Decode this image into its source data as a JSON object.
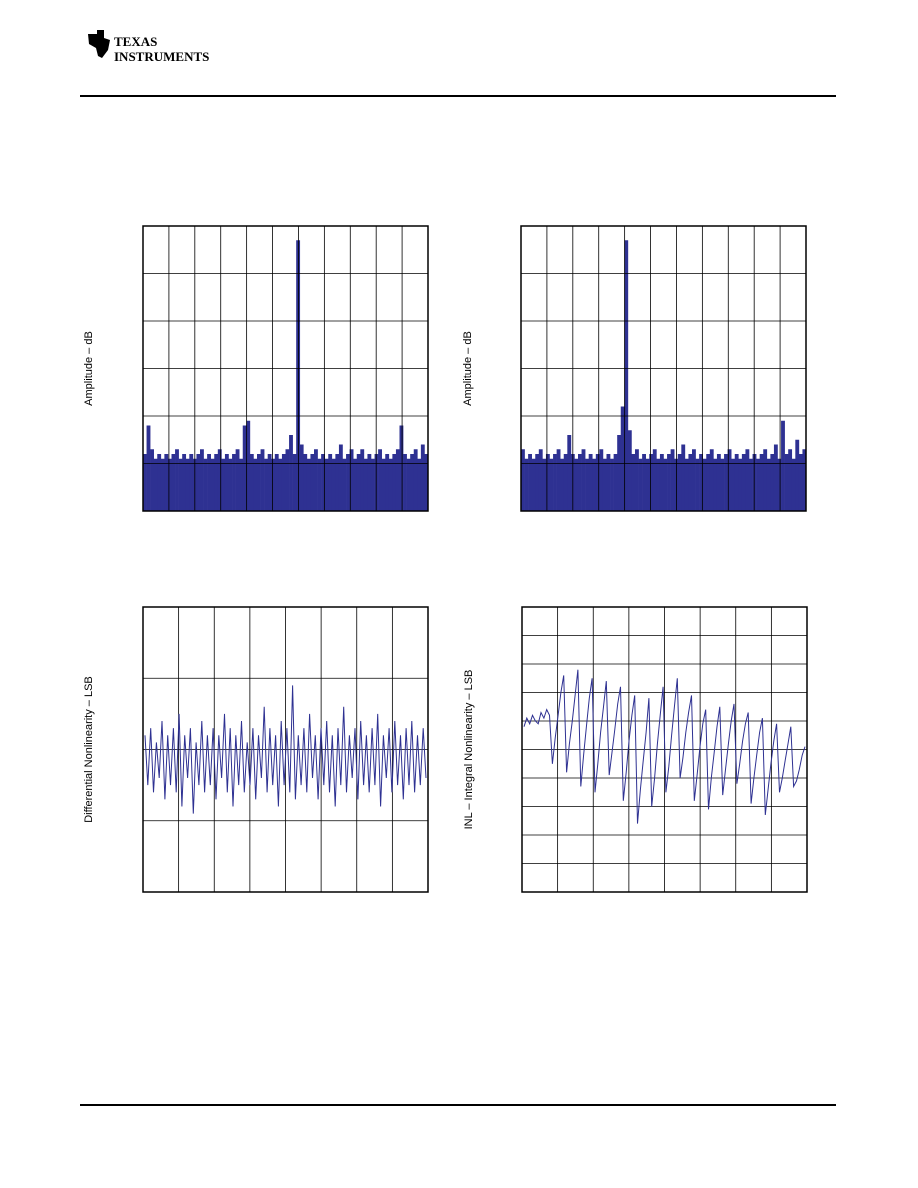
{
  "header": {
    "brand_line1": "TEXAS",
    "brand_line2": "INSTRUMENTS"
  },
  "chart_data": [
    {
      "type": "bar",
      "y_label": "Amplitude – dB",
      "color": "#2e3192",
      "ylim": [
        0,
        6
      ],
      "values": [
        1.2,
        1.8,
        1.3,
        1.1,
        1.2,
        1.1,
        1.2,
        1.1,
        1.2,
        1.3,
        1.1,
        1.2,
        1.1,
        1.2,
        1.1,
        1.2,
        1.3,
        1.1,
        1.2,
        1.1,
        1.2,
        1.3,
        1.1,
        1.2,
        1.1,
        1.2,
        1.3,
        1.1,
        1.8,
        1.9,
        1.2,
        1.1,
        1.2,
        1.3,
        1.1,
        1.2,
        1.1,
        1.2,
        1.1,
        1.2,
        1.3,
        1.6,
        1.2,
        5.7,
        1.4,
        1.2,
        1.1,
        1.2,
        1.3,
        1.1,
        1.2,
        1.1,
        1.2,
        1.1,
        1.2,
        1.4,
        1.1,
        1.2,
        1.3,
        1.1,
        1.2,
        1.3,
        1.1,
        1.2,
        1.1,
        1.2,
        1.3,
        1.1,
        1.2,
        1.1,
        1.2,
        1.3,
        1.8,
        1.2,
        1.1,
        1.2,
        1.3,
        1.1,
        1.4,
        1.2
      ]
    },
    {
      "type": "bar",
      "y_label": "Amplitude – dB",
      "color": "#2e3192",
      "ylim": [
        0,
        6
      ],
      "values": [
        1.3,
        1.1,
        1.2,
        1.1,
        1.2,
        1.3,
        1.1,
        1.2,
        1.1,
        1.2,
        1.3,
        1.1,
        1.2,
        1.6,
        1.2,
        1.1,
        1.2,
        1.3,
        1.1,
        1.2,
        1.1,
        1.2,
        1.3,
        1.1,
        1.2,
        1.1,
        1.2,
        1.6,
        2.2,
        5.7,
        1.7,
        1.2,
        1.3,
        1.1,
        1.2,
        1.1,
        1.2,
        1.3,
        1.1,
        1.2,
        1.1,
        1.2,
        1.3,
        1.1,
        1.2,
        1.4,
        1.1,
        1.2,
        1.3,
        1.1,
        1.2,
        1.1,
        1.2,
        1.3,
        1.1,
        1.2,
        1.1,
        1.2,
        1.3,
        1.1,
        1.2,
        1.1,
        1.2,
        1.3,
        1.1,
        1.2,
        1.1,
        1.2,
        1.3,
        1.1,
        1.2,
        1.4,
        1.1,
        1.9,
        1.2,
        1.3,
        1.1,
        1.5,
        1.2,
        1.3
      ]
    },
    {
      "type": "line",
      "y_label": "Differential Nonlinearity – LSB",
      "color": "#2e3192",
      "ylim": [
        -2,
        2
      ],
      "values": [
        0.2,
        -0.5,
        0.3,
        -0.6,
        0.1,
        -0.4,
        0.4,
        -0.7,
        0.2,
        -0.5,
        0.3,
        -0.6,
        0.5,
        -0.8,
        0.2,
        -0.4,
        0.3,
        -0.9,
        0.1,
        -0.5,
        0.4,
        -0.6,
        0.2,
        -0.5,
        0.3,
        -0.7,
        0.2,
        -0.4,
        0.5,
        -0.6,
        0.3,
        -0.8,
        0.2,
        -0.5,
        0.4,
        -0.6,
        0.1,
        -0.5,
        0.3,
        -0.7,
        0.2,
        -0.4,
        0.6,
        -0.6,
        0.3,
        -0.5,
        0.2,
        -0.8,
        0.4,
        -0.5,
        0.3,
        -0.6,
        0.9,
        -0.7,
        0.2,
        -0.5,
        0.3,
        -0.6,
        0.5,
        -0.4,
        0.2,
        -0.7,
        0.3,
        -0.5,
        0.4,
        -0.6,
        0.2,
        -0.8,
        0.3,
        -0.5,
        0.6,
        -0.6,
        0.2,
        -0.4,
        0.3,
        -0.7,
        0.4,
        -0.5,
        0.2,
        -0.6,
        0.3,
        -0.5,
        0.5,
        -0.8,
        0.2,
        -0.4,
        0.3,
        -0.6,
        0.4,
        -0.5,
        0.2,
        -0.7,
        0.3,
        -0.5,
        0.4,
        -0.6,
        0.2,
        -0.5,
        0.3,
        -0.4
      ]
    },
    {
      "type": "line",
      "y_label": "INL – Integral Nonlinearity – LSB",
      "color": "#2e3192",
      "ylim": [
        -5,
        5
      ],
      "values": [
        0.8,
        1.1,
        0.9,
        1.2,
        1.0,
        0.9,
        1.3,
        1.1,
        1.4,
        1.2,
        -0.5,
        0.4,
        1.2,
        2.0,
        2.6,
        -0.8,
        0.2,
        1.0,
        1.9,
        2.8,
        -1.3,
        -0.2,
        0.8,
        1.8,
        2.5,
        -1.5,
        -0.5,
        0.6,
        1.5,
        2.4,
        -0.9,
        -0.1,
        0.7,
        1.6,
        2.2,
        -1.8,
        -0.8,
        0.3,
        1.2,
        1.9,
        -2.6,
        -1.4,
        -0.4,
        0.6,
        1.8,
        -2.0,
        -1.0,
        0.2,
        1.2,
        2.2,
        -1.5,
        -0.6,
        0.5,
        1.5,
        2.5,
        -1.0,
        -0.3,
        0.6,
        1.3,
        1.9,
        -1.8,
        -0.9,
        0.1,
        0.9,
        1.4,
        -2.1,
        -1.0,
        -0.1,
        0.8,
        1.5,
        -1.6,
        -0.7,
        0.2,
        1.0,
        1.6,
        -1.2,
        -0.5,
        0.3,
        0.9,
        1.3,
        -1.9,
        -1.0,
        -0.2,
        0.6,
        1.1,
        -2.3,
        -1.4,
        -0.5,
        0.3,
        0.9,
        -1.5,
        -1.0,
        -0.4,
        0.2,
        0.8,
        -1.3,
        -1.1,
        -0.7,
        -0.2,
        0.1
      ]
    }
  ]
}
